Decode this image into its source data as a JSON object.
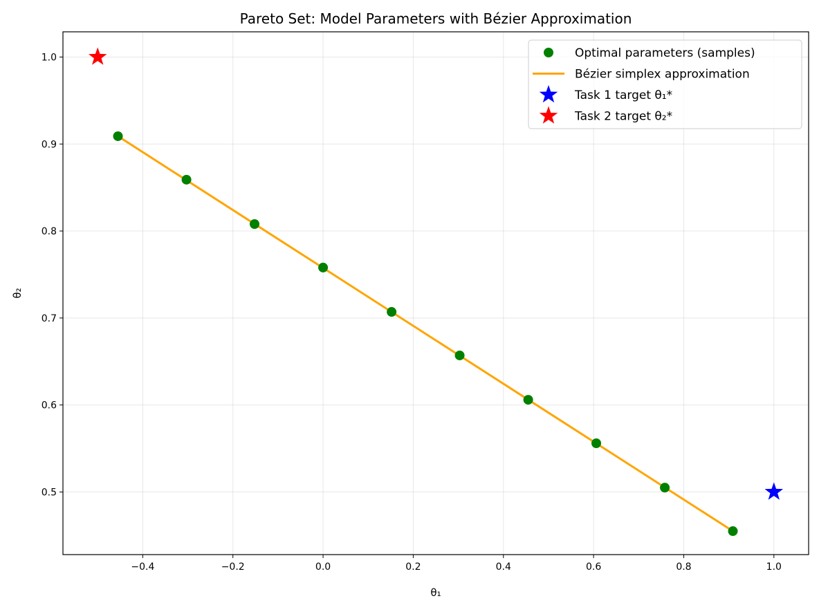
{
  "chart_data": {
    "type": "scatter",
    "title": "Pareto Set: Model Parameters with Bézier Approximation",
    "xlabel": "θ₁",
    "ylabel": "θ₂",
    "xlim": [
      -0.577,
      1.077
    ],
    "ylim": [
      0.428,
      1.029
    ],
    "xticks": [
      -0.4,
      -0.2,
      0.0,
      0.2,
      0.4,
      0.6,
      0.8,
      1.0
    ],
    "xtick_labels": [
      "−0.4",
      "−0.2",
      "0.0",
      "0.2",
      "0.4",
      "0.6",
      "0.8",
      "1.0"
    ],
    "yticks": [
      0.5,
      0.6,
      0.7,
      0.8,
      0.9,
      1.0
    ],
    "ytick_labels": [
      "0.5",
      "0.6",
      "0.7",
      "0.8",
      "0.9",
      "1.0"
    ],
    "grid": true,
    "legend_placement": "top-right",
    "series": [
      {
        "name": "Optimal parameters (samples)",
        "kind": "scatter",
        "color": "#008000",
        "x": [
          -0.455,
          -0.303,
          -0.152,
          0.0,
          0.152,
          0.303,
          0.455,
          0.606,
          0.758,
          0.909
        ],
        "y": [
          0.909,
          0.859,
          0.808,
          0.758,
          0.707,
          0.657,
          0.606,
          0.556,
          0.505,
          0.455
        ]
      },
      {
        "name": "Bézier simplex approximation",
        "kind": "line",
        "color": "#FFA500",
        "x": [
          -0.455,
          0.909
        ],
        "y": [
          0.909,
          0.455
        ]
      },
      {
        "name": "Task 1 target θ₁*",
        "kind": "star",
        "color": "#0000FF",
        "x": [
          1.0
        ],
        "y": [
          0.5
        ]
      },
      {
        "name": "Task 2 target θ₂*",
        "kind": "star",
        "color": "#FF0000",
        "x": [
          -0.5
        ],
        "y": [
          1.0
        ]
      }
    ]
  }
}
